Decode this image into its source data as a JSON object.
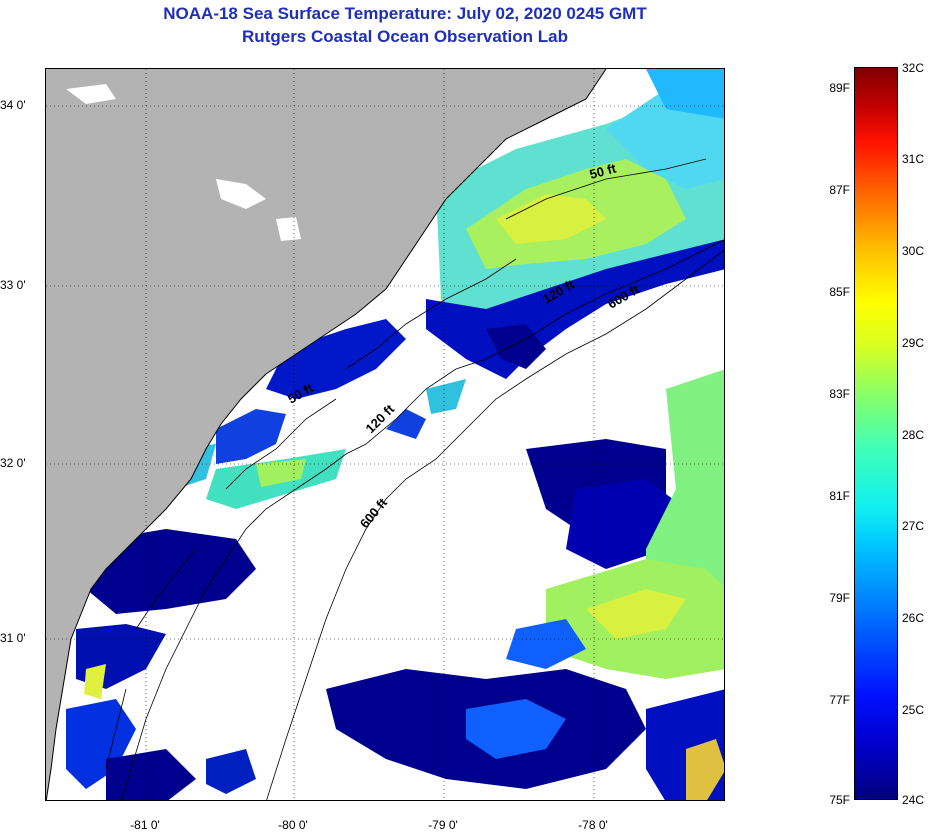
{
  "title_line1": "NOAA-18 Sea Surface Temperature:  July 02, 2020 0245 GMT",
  "title_line2": "Rutgers Coastal Ocean Observation Lab",
  "lat_labels": [
    "34 0'",
    "33 0'",
    "32 0'",
    "31 0'"
  ],
  "lon_labels": [
    "-81 0'",
    "-80 0'",
    "-79 0'",
    "-78 0'"
  ],
  "isobaths": [
    "50 ft",
    "120 ft",
    "600 ft",
    "50 ft",
    "120 ft",
    "600 ft"
  ],
  "colorbar_f": [
    "89F",
    "87F",
    "85F",
    "83F",
    "81F",
    "79F",
    "77F",
    "75F"
  ],
  "colorbar_c": [
    "32C",
    "31C",
    "30C",
    "29C",
    "28C",
    "27C",
    "26C",
    "25C",
    "24C"
  ],
  "colors": {
    "title": "#1f2fb8",
    "land": "#b3b3b3",
    "cloud": "#ffffff",
    "cold": "#00008f",
    "cool": "#1060ff",
    "mid": "#30d0e0",
    "warm": "#80f070",
    "hot": "#e8f040"
  }
}
